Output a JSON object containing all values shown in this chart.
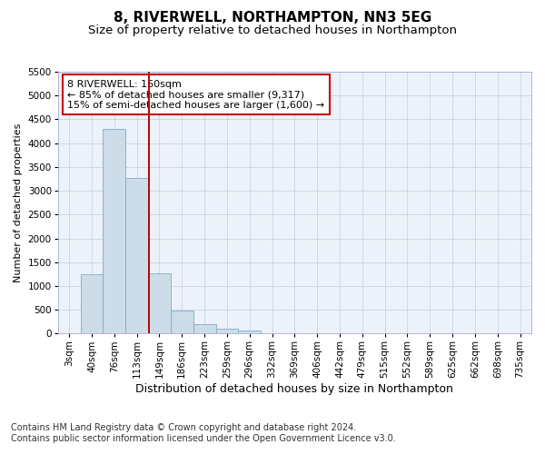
{
  "title": "8, RIVERWELL, NORTHAMPTON, NN3 5EG",
  "subtitle": "Size of property relative to detached houses in Northampton",
  "xlabel": "Distribution of detached houses by size in Northampton",
  "ylabel": "Number of detached properties",
  "categories": [
    "3sqm",
    "40sqm",
    "76sqm",
    "113sqm",
    "149sqm",
    "186sqm",
    "223sqm",
    "259sqm",
    "296sqm",
    "332sqm",
    "369sqm",
    "406sqm",
    "442sqm",
    "479sqm",
    "515sqm",
    "552sqm",
    "589sqm",
    "625sqm",
    "662sqm",
    "698sqm",
    "735sqm"
  ],
  "values": [
    0,
    1250,
    4300,
    3270,
    1270,
    480,
    200,
    100,
    60,
    0,
    0,
    0,
    0,
    0,
    0,
    0,
    0,
    0,
    0,
    0,
    0
  ],
  "bar_color": "#ccdce8",
  "bar_edge_color": "#7aafc8",
  "grid_color": "#c8d4e4",
  "background_color": "#edf2fa",
  "vline_pos": 3.55,
  "vline_color": "#bb0000",
  "annotation_text": "8 RIVERWELL: 160sqm\n← 85% of detached houses are smaller (9,317)\n15% of semi-detached houses are larger (1,600) →",
  "annotation_box_facecolor": "#ffffff",
  "annotation_box_edgecolor": "#cc0000",
  "ylim_max": 5500,
  "yticks": [
    0,
    500,
    1000,
    1500,
    2000,
    2500,
    3000,
    3500,
    4000,
    4500,
    5000,
    5500
  ],
  "footer_line1": "Contains HM Land Registry data © Crown copyright and database right 2024.",
  "footer_line2": "Contains public sector information licensed under the Open Government Licence v3.0.",
  "title_fontsize": 11,
  "subtitle_fontsize": 9.5,
  "ylabel_fontsize": 8,
  "xlabel_fontsize": 9,
  "tick_fontsize": 7.5,
  "annotation_fontsize": 8,
  "footer_fontsize": 7
}
